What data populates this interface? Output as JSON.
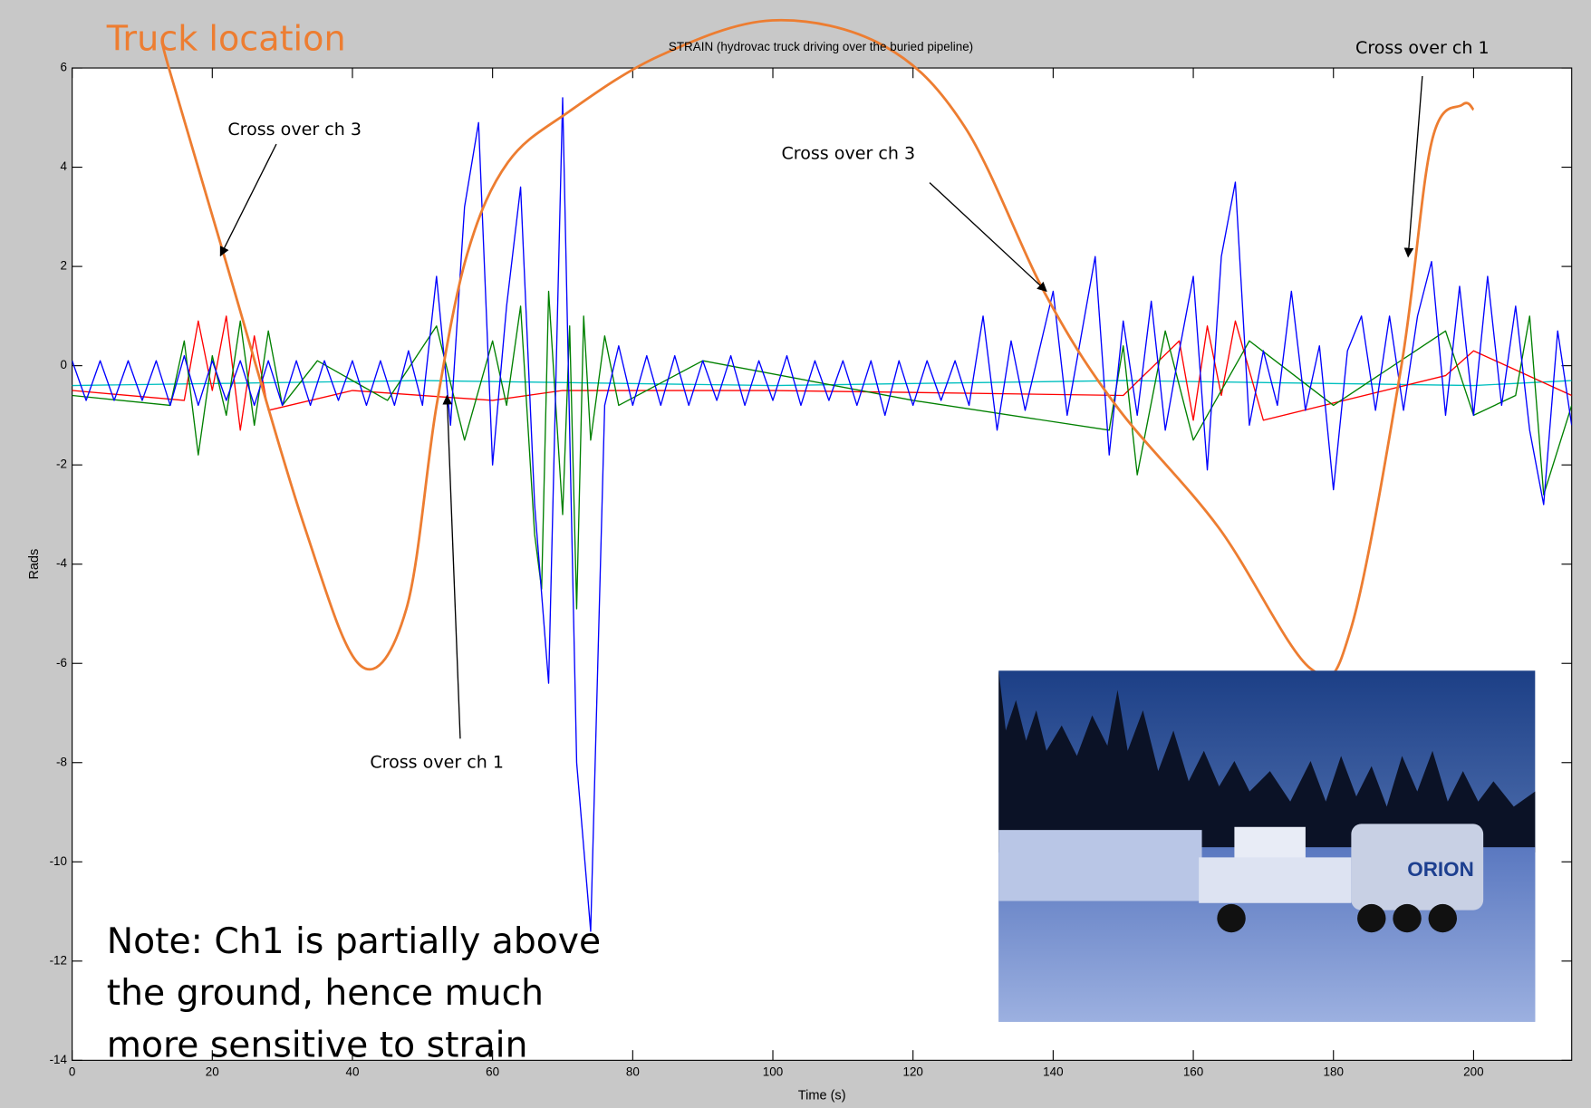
{
  "chart_data": {
    "type": "line",
    "title": "STRAIN (hydrovac truck driving over the buried pipeline)",
    "xlabel": "Time (s)",
    "ylabel": "Rads",
    "xlim": [
      0,
      214
    ],
    "ylim": [
      -14,
      6
    ],
    "xticks": [
      0,
      20,
      40,
      60,
      80,
      100,
      120,
      140,
      160,
      180,
      200
    ],
    "yticks": [
      -14,
      -12,
      -10,
      -8,
      -6,
      -4,
      -2,
      0,
      2,
      4,
      6
    ],
    "series": [
      {
        "color": "#00bfbf",
        "x": [
          0,
          50,
          100,
          150,
          200,
          214
        ],
        "values": [
          -0.4,
          -0.3,
          -0.4,
          -0.3,
          -0.4,
          -0.3
        ]
      },
      {
        "color": "#ff0000",
        "x": [
          0,
          16,
          18,
          20,
          22,
          24,
          26,
          28,
          40,
          60,
          70,
          100,
          150,
          158,
          160,
          162,
          164,
          166,
          170,
          196,
          200,
          214
        ],
        "values": [
          -0.5,
          -0.7,
          0.9,
          -0.5,
          1.0,
          -1.3,
          0.6,
          -0.9,
          -0.5,
          -0.7,
          -0.5,
          -0.5,
          -0.6,
          0.5,
          -1.1,
          0.8,
          -0.6,
          0.9,
          -1.1,
          -0.2,
          0.3,
          -0.6
        ]
      },
      {
        "color": "#008000",
        "x": [
          0,
          14,
          16,
          18,
          20,
          22,
          24,
          26,
          28,
          30,
          35,
          45,
          52,
          56,
          60,
          62,
          64,
          66,
          67,
          68,
          70,
          71,
          72,
          73,
          74,
          76,
          78,
          90,
          120,
          148,
          150,
          152,
          156,
          160,
          168,
          180,
          196,
          200,
          206,
          208,
          210,
          214
        ],
        "values": [
          -0.6,
          -0.8,
          0.5,
          -1.8,
          0.2,
          -1.0,
          0.9,
          -1.2,
          0.7,
          -0.8,
          0.1,
          -0.7,
          0.8,
          -1.5,
          0.5,
          -0.8,
          1.2,
          -3.4,
          -4.5,
          1.5,
          -3.0,
          0.8,
          -4.9,
          1.0,
          -1.5,
          0.6,
          -0.8,
          0.1,
          -0.7,
          -1.3,
          0.4,
          -2.2,
          0.7,
          -1.5,
          0.5,
          -0.8,
          0.7,
          -1.0,
          -0.6,
          1.0,
          -2.6,
          -0.8
        ]
      },
      {
        "color": "#0000ff",
        "x": [
          0,
          2,
          4,
          6,
          8,
          10,
          12,
          14,
          16,
          18,
          20,
          22,
          24,
          26,
          28,
          30,
          32,
          34,
          36,
          38,
          40,
          42,
          44,
          46,
          48,
          50,
          52,
          54,
          56,
          58,
          60,
          62,
          64,
          66,
          68,
          70,
          72,
          74,
          76,
          78,
          80,
          82,
          84,
          86,
          88,
          90,
          92,
          94,
          96,
          98,
          100,
          102,
          104,
          106,
          108,
          110,
          112,
          114,
          116,
          118,
          120,
          122,
          124,
          126,
          128,
          130,
          132,
          134,
          136,
          138,
          140,
          142,
          144,
          146,
          148,
          150,
          152,
          154,
          156,
          158,
          160,
          162,
          164,
          166,
          168,
          170,
          172,
          174,
          176,
          178,
          180,
          182,
          184,
          186,
          188,
          190,
          192,
          194,
          196,
          198,
          200,
          202,
          204,
          206,
          208,
          210,
          212,
          214
        ],
        "values": [
          0.1,
          -0.7,
          0.1,
          -0.7,
          0.1,
          -0.7,
          0.1,
          -0.8,
          0.2,
          -0.8,
          0.1,
          -0.7,
          0.1,
          -0.8,
          0.1,
          -0.8,
          0.1,
          -0.8,
          0.1,
          -0.7,
          0.1,
          -0.8,
          0.1,
          -0.8,
          0.3,
          -0.8,
          1.8,
          -1.2,
          3.2,
          4.9,
          -2.0,
          1.2,
          3.6,
          -2.8,
          -6.4,
          5.4,
          -8.0,
          -11.4,
          -0.8,
          0.4,
          -0.8,
          0.2,
          -0.8,
          0.2,
          -0.8,
          0.1,
          -0.7,
          0.2,
          -0.8,
          0.1,
          -0.7,
          0.2,
          -0.8,
          0.1,
          -0.7,
          0.1,
          -0.8,
          0.1,
          -1.0,
          0.1,
          -0.8,
          0.1,
          -0.7,
          0.1,
          -0.8,
          1.0,
          -1.3,
          0.5,
          -0.9,
          0.3,
          1.5,
          -1.0,
          0.6,
          2.2,
          -1.8,
          0.9,
          -1.0,
          1.3,
          -1.3,
          0.3,
          1.8,
          -2.1,
          2.2,
          3.7,
          -1.2,
          0.3,
          -0.8,
          1.5,
          -0.9,
          0.4,
          -2.5,
          0.3,
          1.0,
          -0.9,
          1.0,
          -0.9,
          1.0,
          2.1,
          -1.0,
          1.6,
          -1.0,
          1.8,
          -0.8,
          1.2,
          -1.3,
          -2.8,
          0.7,
          -1.2
        ]
      },
      {
        "name": "Truck location",
        "color": "#ed7d31",
        "smooth": true,
        "x": [
          12.9,
          13.8,
          21.6,
          33.2,
          41.2,
          47.7,
          52.0,
          56.4,
          62.2,
          70.9,
          83.9,
          99.9,
          115.8,
          127.4,
          138.9,
          149.0,
          163.6,
          176.7,
          182.5,
          189.7,
          194.0,
          198.4,
          200.0
        ],
        "values": [
          6.55,
          6.0,
          2.26,
          -3.26,
          -6.05,
          -4.9,
          -0.81,
          2.26,
          4.1,
          5.12,
          6.25,
          6.96,
          6.45,
          4.81,
          1.44,
          -0.81,
          -3.26,
          -6.1,
          -5.3,
          0.0,
          4.5,
          5.26,
          5.16
        ]
      }
    ],
    "annotations": [
      "Cross over ch 3",
      "Cross over ch 3",
      "Cross over ch 1",
      "Cross over ch 1"
    ],
    "note": [
      "Note: Ch1 is partially above",
      "the ground, hence much",
      "more sensitive to strain"
    ]
  },
  "photo": {
    "logo": "ORION"
  }
}
